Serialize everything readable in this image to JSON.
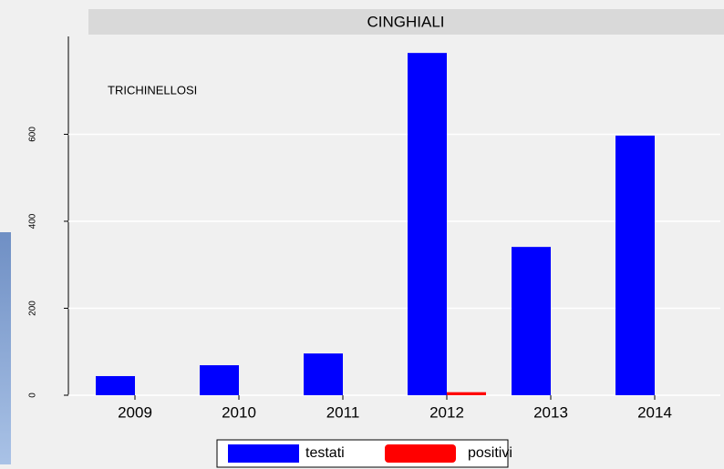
{
  "chart_data": {
    "type": "bar",
    "title": "CINGHIALI",
    "annotation": "TRICHINELLOSI",
    "categories": [
      "2009",
      "2010",
      "2011",
      "2012",
      "2013",
      "2014"
    ],
    "series": [
      {
        "name": "testati",
        "color": "#0000ff",
        "values": [
          44,
          69,
          96,
          787,
          341,
          597
        ]
      },
      {
        "name": "positivi",
        "color": "#ff0000",
        "values": [
          0,
          0,
          0,
          7,
          0,
          0
        ]
      }
    ],
    "ylim": [
      0,
      825
    ],
    "yticks": [
      0,
      200,
      400,
      600
    ],
    "grid": true,
    "legend": "bottom"
  }
}
